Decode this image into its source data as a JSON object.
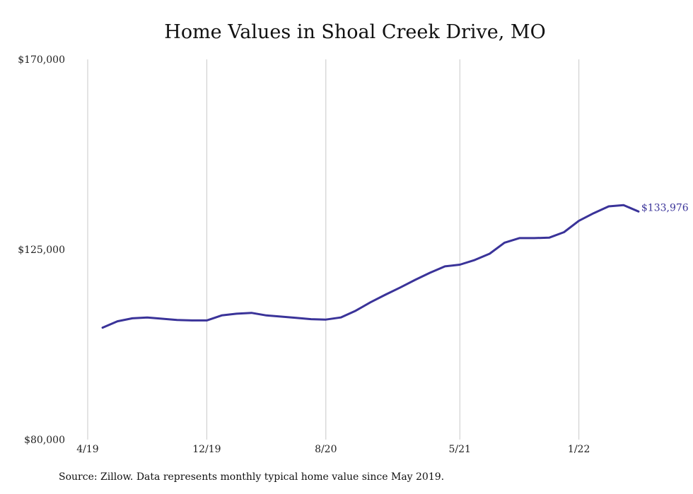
{
  "chart_data": {
    "type": "line",
    "title": "Home Values in Shoal Creek Drive, MO",
    "xlabel": "",
    "ylabel": "",
    "ylim": [
      80000,
      170000
    ],
    "yticks": [
      "$80,000",
      "$125,000",
      "$170,000"
    ],
    "ytick_values": [
      80000,
      125000,
      170000
    ],
    "xticks": [
      "4/19",
      "12/19",
      "8/20",
      "5/21",
      "1/22"
    ],
    "xtick_months": [
      "2019-04",
      "2019-12",
      "2020-08",
      "2021-05",
      "2022-01"
    ],
    "grid": "vertical",
    "line_color": "#3a3399",
    "series": [
      {
        "x": [
          "2019-05",
          "2019-06",
          "2019-07",
          "2019-08",
          "2019-09",
          "2019-10",
          "2019-11",
          "2019-12",
          "2020-01",
          "2020-02",
          "2020-03",
          "2020-04",
          "2020-05",
          "2020-06",
          "2020-07",
          "2020-08",
          "2020-09",
          "2020-10",
          "2020-11",
          "2020-12",
          "2021-01",
          "2021-02",
          "2021-03",
          "2021-04",
          "2021-05",
          "2021-06",
          "2021-07",
          "2021-08",
          "2021-09",
          "2021-10",
          "2021-11",
          "2021-12",
          "2022-01",
          "2022-02",
          "2022-03",
          "2022-04",
          "2022-05"
        ],
        "values": [
          106500,
          108000,
          108700,
          108900,
          108600,
          108300,
          108200,
          108200,
          109400,
          109800,
          110000,
          109400,
          109100,
          108800,
          108500,
          108400,
          108900,
          110500,
          112500,
          114300,
          116000,
          117800,
          119500,
          121000,
          121400,
          122500,
          124000,
          126600,
          127700,
          127700,
          127800,
          129100,
          131800,
          133600,
          135200,
          135500,
          133976
        ]
      }
    ],
    "end_label": "$133,976",
    "source": "Source: Zillow. Data represents monthly typical home value since May 2019."
  }
}
